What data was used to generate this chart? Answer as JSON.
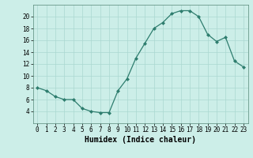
{
  "x": [
    0,
    1,
    2,
    3,
    4,
    5,
    6,
    7,
    8,
    9,
    10,
    11,
    12,
    13,
    14,
    15,
    16,
    17,
    18,
    19,
    20,
    21,
    22,
    23
  ],
  "y": [
    8.0,
    7.5,
    6.5,
    6.0,
    6.0,
    4.5,
    4.0,
    3.8,
    3.8,
    7.5,
    9.5,
    13.0,
    15.5,
    18.0,
    19.0,
    20.5,
    21.0,
    21.0,
    20.0,
    17.0,
    15.8,
    16.5,
    12.5,
    11.5
  ],
  "line_color": "#2e7d6e",
  "marker": "D",
  "marker_size": 2.0,
  "bg_color": "#cceee8",
  "grid_color": "#aad8d0",
  "xlabel": "Humidex (Indice chaleur)",
  "xlim": [
    -0.5,
    23.5
  ],
  "ylim": [
    2,
    22
  ],
  "yticks": [
    4,
    6,
    8,
    10,
    12,
    14,
    16,
    18,
    20
  ],
  "xticks": [
    0,
    1,
    2,
    3,
    4,
    5,
    6,
    7,
    8,
    9,
    10,
    11,
    12,
    13,
    14,
    15,
    16,
    17,
    18,
    19,
    20,
    21,
    22,
    23
  ],
  "tick_fontsize": 5.5,
  "xlabel_fontsize": 7.0,
  "linewidth": 0.9
}
